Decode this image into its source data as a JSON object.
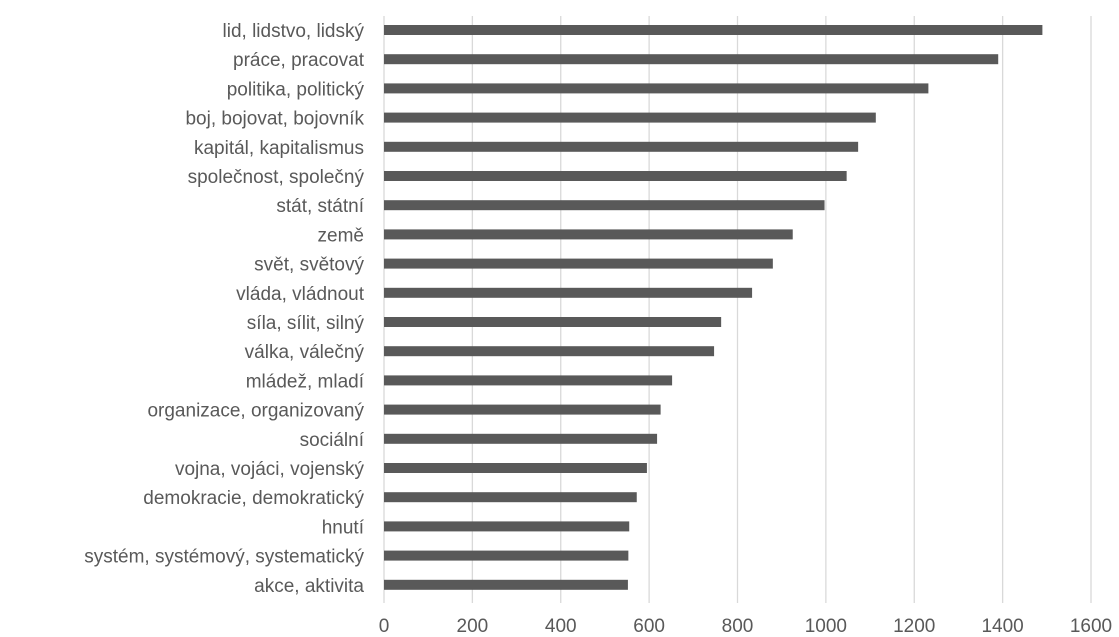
{
  "chart_data": {
    "type": "bar",
    "orientation": "horizontal",
    "categories": [
      "lid, lidstvo, lidský",
      "práce, pracovat",
      "politika, politický",
      "boj, bojovat, bojovník",
      "kapitál, kapitalismus",
      "společnost, společný",
      "stát, státní",
      "země ",
      "svět, světový",
      "vláda, vládnout",
      "síla, sílit, silný",
      "válka, válečný",
      "mládež, mladí",
      "organizace, organizovaný",
      "sociální",
      "vojna, vojáci, vojenský",
      "demokracie, demokratický",
      "hnutí",
      "systém, systémový, systematický",
      "akce, aktivita"
    ],
    "values": [
      1490,
      1390,
      1232,
      1113,
      1073,
      1047,
      997,
      925,
      880,
      833,
      763,
      747,
      652,
      626,
      618,
      595,
      572,
      555,
      553,
      552
    ],
    "xlim": [
      0,
      1600
    ],
    "x_ticks": [
      "0",
      "200",
      "400",
      "600",
      "800",
      "1000",
      "1200",
      "1400",
      "1600"
    ],
    "grid": "vertical",
    "legend": "none",
    "title": "",
    "xlabel": "",
    "ylabel": "",
    "bar_color": "#595959"
  }
}
